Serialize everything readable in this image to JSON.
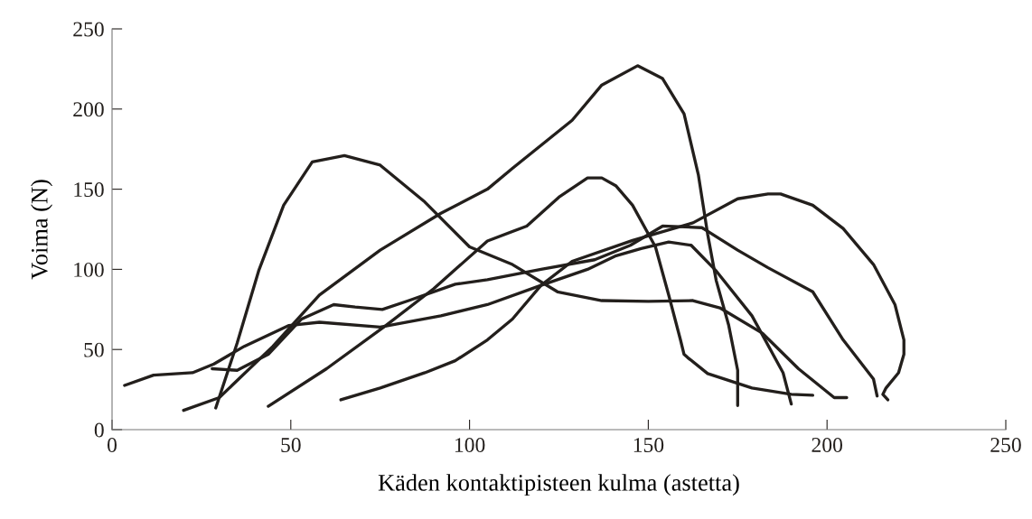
{
  "chart_data": {
    "type": "line",
    "xlabel": "Käden kontaktipisteen kulma (astetta)",
    "ylabel": "Voima (N)",
    "xlim": [
      0,
      250
    ],
    "ylim": [
      0,
      250
    ],
    "xticks": [
      0,
      50,
      100,
      150,
      200,
      250
    ],
    "yticks": [
      0,
      50,
      100,
      150,
      200,
      250
    ],
    "grid": false,
    "legend": false,
    "marker": "none",
    "line_style": "solid",
    "series": [
      {
        "color": "#231f1c",
        "x": [
          29,
          35,
          41,
          48,
          56,
          65,
          75,
          87.5,
          100,
          112,
          124.6,
          137,
          150,
          162.5,
          170,
          182,
          192,
          202,
          205.5
        ],
        "values": [
          13.5,
          54,
          99,
          140,
          167,
          171,
          165,
          142,
          114,
          103,
          86,
          80.5,
          80,
          80.5,
          76,
          60,
          38,
          20,
          20
        ]
      },
      {
        "color": "#231f1c",
        "x": [
          20,
          30,
          45,
          58,
          75,
          92,
          105,
          112,
          128.7,
          137,
          147,
          154,
          160,
          164,
          166.6,
          169,
          172.5,
          175,
          175
        ],
        "values": [
          12,
          20,
          52,
          84,
          112,
          135,
          150,
          163,
          193,
          215,
          227,
          219,
          197,
          159,
          122,
          93,
          65,
          37,
          15
        ]
      },
      {
        "color": "#231f1c",
        "x": [
          43.7,
          60,
          76.6,
          90,
          105,
          116,
          125,
          133,
          137,
          141,
          145.6,
          152,
          155.7,
          159,
          160,
          161,
          166.6,
          179,
          190,
          196
        ],
        "values": [
          14.6,
          38,
          65,
          88,
          117.7,
          127,
          145,
          157,
          157,
          152,
          140,
          114,
          84,
          56,
          47,
          45,
          35,
          26,
          22,
          21.5
        ]
      },
      {
        "color": "#231f1c",
        "x": [
          64,
          75,
          87.5,
          96,
          105,
          112,
          120,
          128.7,
          145.6,
          162.5,
          175,
          183.5,
          187,
          196,
          204.5,
          213,
          219,
          221.5,
          221.5,
          220,
          216.5,
          215.6,
          217
        ],
        "values": [
          18.6,
          26,
          35.5,
          43,
          56,
          69,
          90,
          105,
          118,
          129,
          144,
          147,
          147,
          140,
          125.5,
          103,
          78,
          56,
          47,
          35.5,
          26,
          22,
          18.6
        ]
      },
      {
        "color": "#231f1c",
        "x": [
          28,
          35,
          43.7,
          53,
          62,
          68,
          75.6,
          83,
          96,
          105,
          120,
          135,
          145,
          154,
          165,
          175,
          183.5,
          196,
          204.5,
          213,
          214
        ],
        "values": [
          38,
          37,
          47,
          69,
          78,
          76.5,
          75,
          80.5,
          90.7,
          93.5,
          100,
          106,
          115,
          127,
          126,
          112,
          101,
          86,
          56,
          31.5,
          21
        ]
      },
      {
        "color": "#231f1c",
        "x": [
          3.5,
          11.6,
          22.5,
          28.5,
          37,
          49.5,
          58,
          75,
          92,
          105,
          120,
          133,
          141,
          148,
          155.7,
          162,
          169,
          179,
          187.7,
          190
        ],
        "values": [
          27.6,
          34,
          35.5,
          41,
          52,
          65,
          67,
          64,
          71,
          78,
          90,
          100,
          108.5,
          113,
          117,
          115,
          99,
          71,
          35.5,
          16
        ]
      }
    ]
  }
}
